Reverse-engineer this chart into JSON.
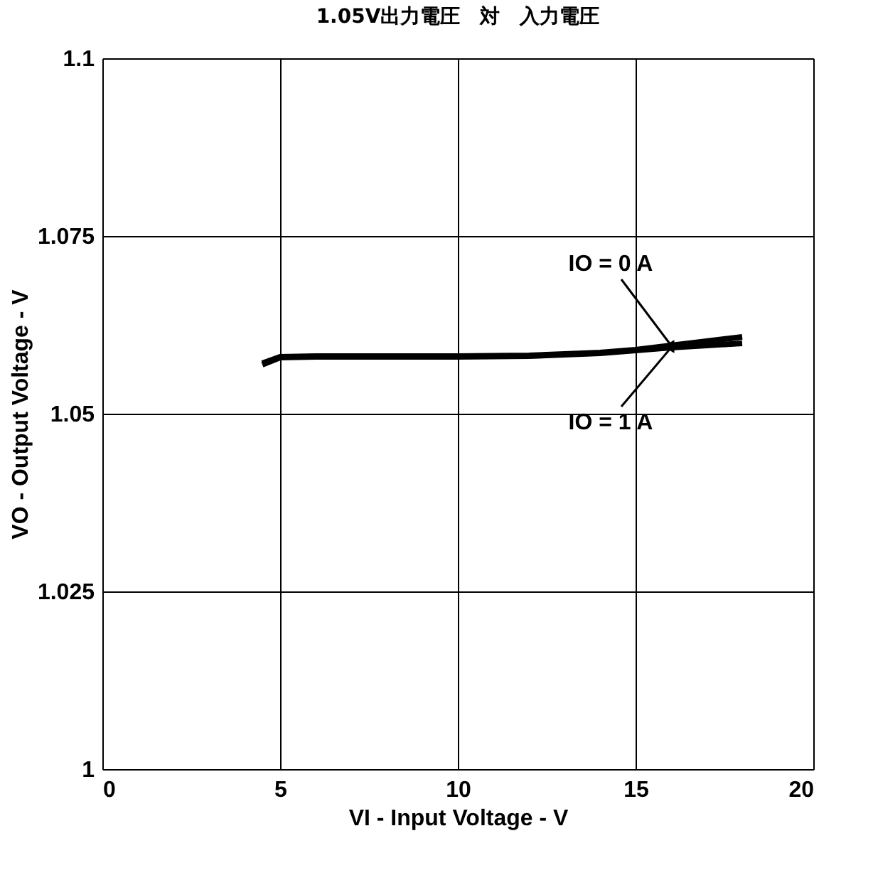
{
  "chart_data": {
    "type": "line",
    "title": "1.05V出力電圧　対　入力電圧",
    "xlabel": "VI - Input Voltage - V",
    "ylabel": "VO - Output Voltage - V",
    "xlim": [
      0,
      20
    ],
    "xticks": [
      0,
      5,
      10,
      15,
      20
    ],
    "ylim": [
      1,
      1.1
    ],
    "yticks": [
      1,
      1.025,
      1.05,
      1.075,
      1.1
    ],
    "grid": true,
    "legend": false,
    "marker": "none",
    "line_style": "solid",
    "series": [
      {
        "name": "IO = 0 A",
        "color": "#000000",
        "x": [
          4.5,
          5,
          6,
          8,
          10,
          12,
          13,
          14,
          15,
          16,
          17,
          18
        ],
        "values": [
          1.0571,
          1.058,
          1.0581,
          1.0581,
          1.0581,
          1.0582,
          1.0584,
          1.0586,
          1.059,
          1.0596,
          1.0602,
          1.0608
        ]
      },
      {
        "name": "IO = 1 A",
        "color": "#000000",
        "x": [
          4.5,
          5,
          6,
          8,
          10,
          12,
          13,
          14,
          15,
          16,
          17,
          18
        ],
        "values": [
          1.0569,
          1.0579,
          1.058,
          1.058,
          1.058,
          1.0581,
          1.0583,
          1.0585,
          1.0589,
          1.0593,
          1.0596,
          1.0599
        ]
      }
    ]
  }
}
